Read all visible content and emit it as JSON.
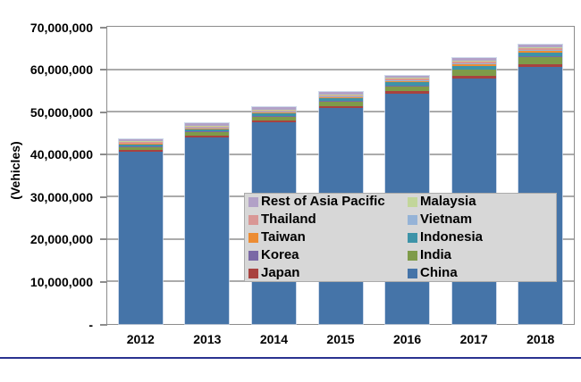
{
  "chart_data": {
    "type": "bar",
    "stacked": true,
    "title": "",
    "xlabel": "",
    "ylabel": "(Vehicles)",
    "ylim": [
      0,
      70000000
    ],
    "ytick_interval": 10000000,
    "ytick_labels": [
      "70,000,000",
      "60,000,000",
      "50,000,000",
      "40,000,000",
      "30,000,000",
      "20,000,000",
      "10,000,000",
      "-"
    ],
    "grid": "horizontal-major",
    "categories": [
      "2012",
      "2013",
      "2014",
      "2015",
      "2016",
      "2017",
      "2018"
    ],
    "series": [
      {
        "name": "China",
        "color": "#4574A8",
        "values": [
          40500000,
          44000000,
          47500000,
          50800000,
          54300000,
          57800000,
          60500000
        ]
      },
      {
        "name": "Japan",
        "color": "#A8423F",
        "values": [
          450000,
          450000,
          460000,
          480000,
          500000,
          550000,
          600000
        ]
      },
      {
        "name": "India",
        "color": "#7E9B49",
        "values": [
          700000,
          800000,
          900000,
          1050000,
          1200000,
          1450000,
          1700000
        ]
      },
      {
        "name": "Korea",
        "color": "#7A68A5",
        "values": [
          100000,
          110000,
          120000,
          130000,
          140000,
          150000,
          160000
        ]
      },
      {
        "name": "Indonesia",
        "color": "#3D93A8",
        "values": [
          450000,
          500000,
          560000,
          640000,
          750000,
          880000,
          1020000
        ]
      },
      {
        "name": "Taiwan",
        "color": "#EC8C33",
        "values": [
          250000,
          255000,
          265000,
          275000,
          290000,
          310000,
          330000
        ]
      },
      {
        "name": "Vietnam",
        "color": "#95B3D7",
        "values": [
          100000,
          115000,
          130000,
          150000,
          175000,
          210000,
          250000
        ]
      },
      {
        "name": "Thailand",
        "color": "#D99795",
        "values": [
          300000,
          320000,
          345000,
          370000,
          400000,
          440000,
          480000
        ]
      },
      {
        "name": "Malaysia",
        "color": "#C2D69A",
        "values": [
          150000,
          160000,
          170000,
          180000,
          190000,
          205000,
          220000
        ]
      },
      {
        "name": "Rest of Asia Pacific",
        "color": "#B2A1C7",
        "values": [
          500000,
          520000,
          540000,
          560000,
          580000,
          600000,
          620000
        ]
      }
    ],
    "legend": {
      "position": "inside-bottom-right-overlay",
      "columns": 2,
      "background": "#D7D7D7",
      "order": [
        "Rest of Asia Pacific",
        "Malaysia",
        "Thailand",
        "Vietnam",
        "Taiwan",
        "Indonesia",
        "Korea",
        "India",
        "Japan",
        "China"
      ]
    }
  },
  "decor": {
    "bottom_rule_color": "#2A3390"
  }
}
